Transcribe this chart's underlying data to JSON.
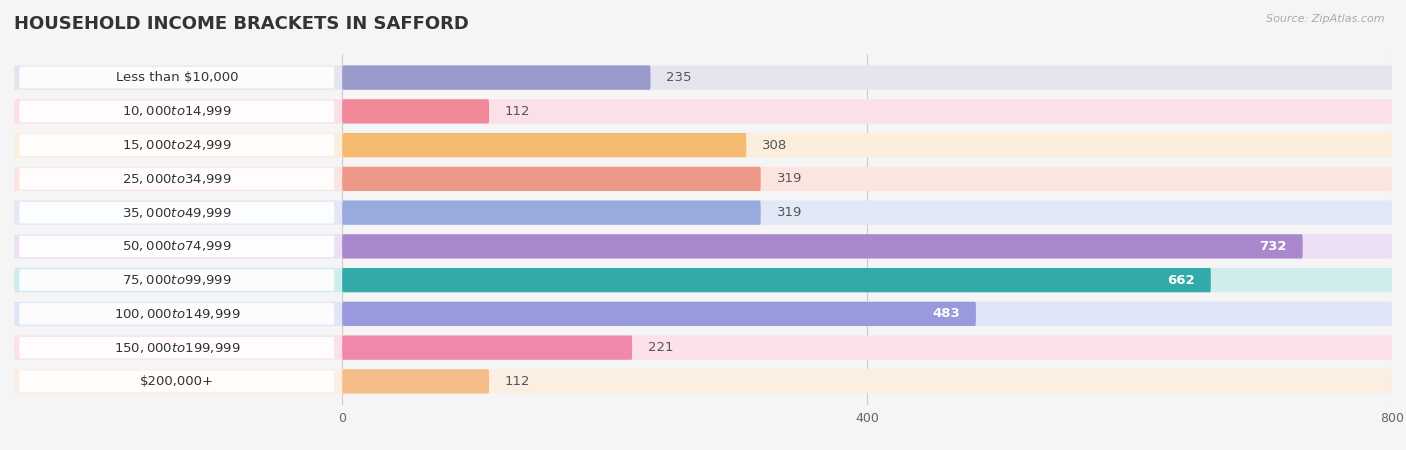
{
  "title": "Household Income Brackets in Safford",
  "source": "Source: ZipAtlas.com",
  "categories": [
    "Less than $10,000",
    "$10,000 to $14,999",
    "$15,000 to $24,999",
    "$25,000 to $34,999",
    "$35,000 to $49,999",
    "$50,000 to $74,999",
    "$75,000 to $99,999",
    "$100,000 to $149,999",
    "$150,000 to $199,999",
    "$200,000+"
  ],
  "values": [
    235,
    112,
    308,
    319,
    319,
    732,
    662,
    483,
    221,
    112
  ],
  "bar_colors": [
    "#9999cc",
    "#f08898",
    "#f5bb70",
    "#ee9988",
    "#99aadd",
    "#aa88cc",
    "#33aaaa",
    "#9999dd",
    "#f088aa",
    "#f5bb88"
  ],
  "bar_bg_colors": [
    "#e5e5f0",
    "#fce0e8",
    "#fceedd",
    "#fce5e0",
    "#e2e8f5",
    "#ede0f5",
    "#d0eded",
    "#e0e5f8",
    "#fce0ec",
    "#fceee0"
  ],
  "label_bg_color": "#ffffff",
  "xlim_data": [
    0,
    800
  ],
  "xticks": [
    0,
    400,
    800
  ],
  "white_text_threshold": 400,
  "background_color": "#f5f5f5",
  "title_fontsize": 13,
  "label_fontsize": 9.5,
  "value_fontsize": 9.5,
  "source_fontsize": 8
}
